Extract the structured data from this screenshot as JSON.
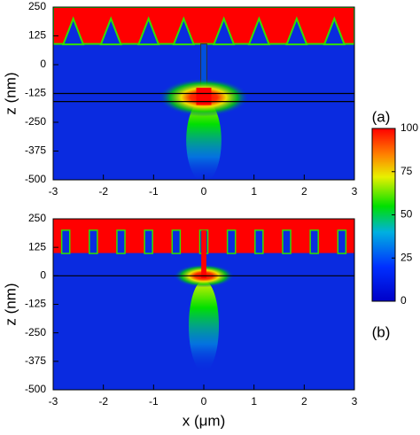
{
  "chart_data": [
    {
      "type": "heatmap",
      "panel_label": "(a)",
      "ylabel": "z (nm)",
      "xlim": [
        -3,
        3
      ],
      "xticks": [
        -3,
        -2,
        -1,
        0,
        1,
        2,
        3
      ],
      "ylim": [
        -500,
        250
      ],
      "yticks": [
        250,
        125,
        0,
        -125,
        -250,
        -375,
        -500
      ],
      "zlim": [
        0,
        100
      ],
      "zticks": [
        0,
        25,
        50,
        75,
        100
      ]
    },
    {
      "type": "heatmap",
      "panel_label": "(b)",
      "ylabel": "z (nm)",
      "xlabel": "x (μm)",
      "xlim": [
        -3,
        3
      ],
      "xticks": [
        -3,
        -2,
        -1,
        0,
        1,
        2,
        3
      ],
      "ylim": [
        -500,
        250
      ],
      "yticks": [
        250,
        125,
        0,
        -125,
        -250,
        -375,
        -500
      ]
    }
  ]
}
